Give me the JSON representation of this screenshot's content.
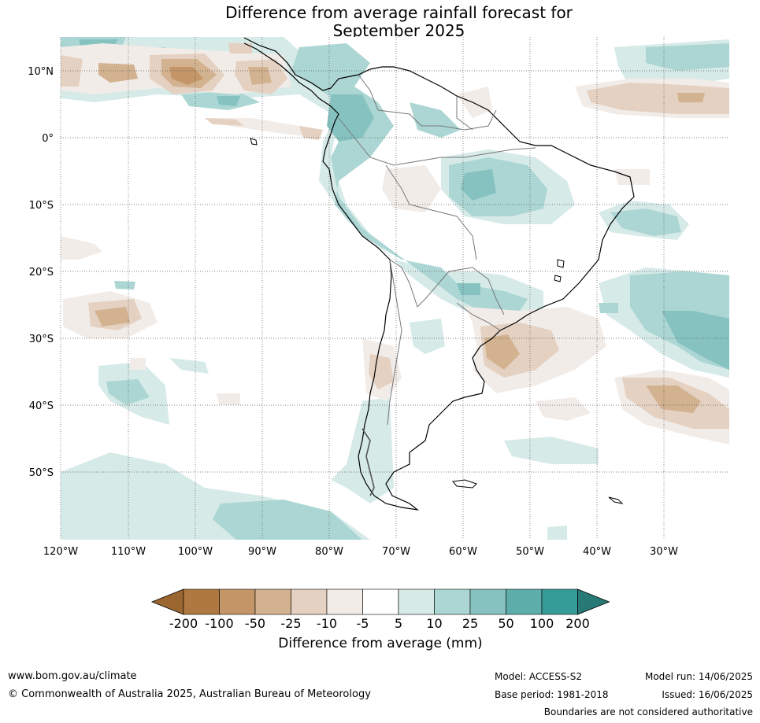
{
  "title": {
    "line1": "Difference from average rainfall forecast for",
    "line2": "September 2025"
  },
  "map": {
    "lon_labels": [
      "120°W",
      "110°W",
      "100°W",
      "90°W",
      "80°W",
      "70°W",
      "60°W",
      "50°W",
      "40°W",
      "30°W"
    ],
    "lat_labels": [
      "10°N",
      "0°",
      "10°S",
      "20°S",
      "30°S",
      "40°S",
      "50°S"
    ],
    "lon_range": [
      -120,
      -20
    ],
    "lat_range": [
      -60,
      15
    ]
  },
  "colorbar": {
    "title": "Difference from average (mm)",
    "labels": [
      "-200",
      "-100",
      "-50",
      "-25",
      "-10",
      "-5",
      "5",
      "10",
      "25",
      "50",
      "100",
      "200"
    ],
    "colors": [
      "#9c6631",
      "#af7840",
      "#c39567",
      "#d3b290",
      "#e4d1c1",
      "#f2ece8",
      "#ffffff",
      "#d6eae8",
      "#acd6d4",
      "#86c3c0",
      "#5daeab",
      "#369c98",
      "#277a76"
    ]
  },
  "footer": {
    "url": "www.bom.gov.au/climate",
    "copyright": "© Commonwealth of Australia 2025, Australian Bureau of Meteorology",
    "model": "Model: ACCESS-S2",
    "base_period": "Base period: 1981-2018",
    "model_run": "Model run: 14/06/2025",
    "issued": "Issued: 16/06/2025",
    "disclaimer": "Boundaries are not considered authoritative"
  }
}
